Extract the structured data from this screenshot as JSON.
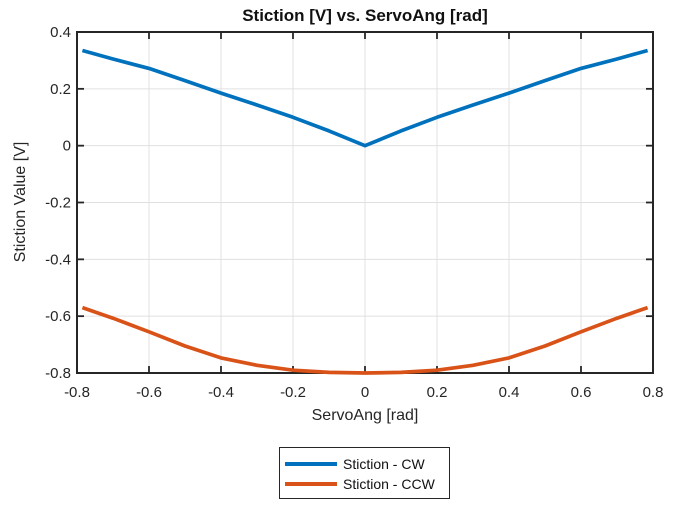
{
  "figure": {
    "background": "#ffffff",
    "axis_color": "#262626",
    "grid_color": "#e0e0e0",
    "tick_label_color": "#262626"
  },
  "chart_data": {
    "type": "line",
    "title": "Stiction [V] vs. ServoAng [rad]",
    "xlabel": "ServoAng [rad]",
    "ylabel": "Stiction Value [V]",
    "xlim": [
      -0.8,
      0.8
    ],
    "ylim": [
      -0.8,
      0.4
    ],
    "xticks": [
      -0.8,
      -0.6,
      -0.4,
      -0.2,
      0,
      0.2,
      0.4,
      0.6,
      0.8
    ],
    "xtick_labels": [
      "-0.8",
      "-0.6",
      "-0.4",
      "-0.2",
      "0",
      "0.2",
      "0.4",
      "0.6",
      "0.8"
    ],
    "yticks": [
      -0.8,
      -0.6,
      -0.4,
      -0.2,
      0,
      0.2,
      0.4
    ],
    "ytick_labels": [
      "-0.8",
      "-0.6",
      "-0.4",
      "-0.2",
      "0",
      "0.2",
      "0.4"
    ],
    "grid": true,
    "legend_position": "below-plot",
    "x": [
      -0.785,
      -0.7,
      -0.6,
      -0.5,
      -0.4,
      -0.3,
      -0.2,
      -0.1,
      0,
      0.1,
      0.2,
      0.3,
      0.4,
      0.5,
      0.6,
      0.7,
      0.785
    ],
    "series": [
      {
        "name": "Stiction - CW",
        "color": "#0072BD",
        "values": [
          0.335,
          0.305,
          0.272,
          0.229,
          0.185,
          0.143,
          0.1,
          0.052,
          0,
          0.052,
          0.1,
          0.143,
          0.185,
          0.229,
          0.272,
          0.305,
          0.335
        ]
      },
      {
        "name": "Stiction - CCW",
        "color": "#D95319",
        "values": [
          -0.57,
          -0.607,
          -0.655,
          -0.705,
          -0.747,
          -0.773,
          -0.79,
          -0.798,
          -0.8,
          -0.798,
          -0.79,
          -0.773,
          -0.747,
          -0.705,
          -0.655,
          -0.607,
          -0.57
        ]
      }
    ]
  }
}
